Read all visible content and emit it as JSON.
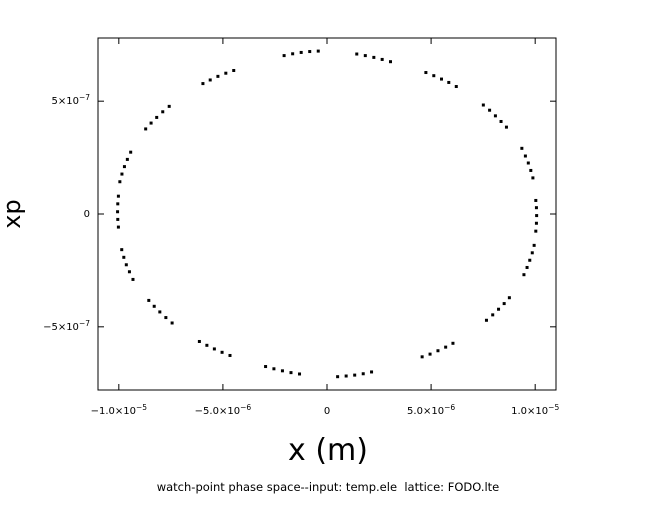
{
  "chart_data": {
    "type": "scatter",
    "title": "",
    "xlabel": "x (m)",
    "ylabel": "xp",
    "caption": "watch-point phase space--input: temp.ele  lattice: FODO.lte",
    "xlim": [
      -1.1e-05,
      1.1e-05
    ],
    "ylim": [
      -7.8e-07,
      7.8e-07
    ],
    "grid": false,
    "legend": "none",
    "marker_color": "#000000",
    "x_ticks": [
      {
        "value": -1e-05,
        "label_mantissa": "−1.0×10",
        "label_exp": "−5"
      },
      {
        "value": -5e-06,
        "label_mantissa": "−5.0×10",
        "label_exp": "−6"
      },
      {
        "value": 0,
        "label_mantissa": "0",
        "label_exp": ""
      },
      {
        "value": 5e-06,
        "label_mantissa": "5.0×10",
        "label_exp": "−6"
      },
      {
        "value": 1e-05,
        "label_mantissa": "1.0×10",
        "label_exp": "−5"
      }
    ],
    "y_ticks": [
      {
        "value": 5e-07,
        "label_mantissa": "5×10",
        "label_exp": "−7"
      },
      {
        "value": 0,
        "label_mantissa": "0",
        "label_exp": ""
      },
      {
        "value": -5e-07,
        "label_mantissa": "−5×10",
        "label_exp": "−7"
      }
    ],
    "series": [
      {
        "points": [
          [
            1.43e-06,
            7.09e-07
          ],
          [
            1.84e-06,
            7.02e-07
          ],
          [
            2.25e-06,
            6.94e-07
          ],
          [
            2.65e-06,
            6.85e-07
          ],
          [
            3.05e-06,
            6.75e-07
          ],
          [
            4.75e-06,
            6.27e-07
          ],
          [
            5.13e-06,
            6.13e-07
          ],
          [
            5.5e-06,
            5.98e-07
          ],
          [
            5.85e-06,
            5.83e-07
          ],
          [
            6.21e-06,
            5.65e-07
          ],
          [
            7.51e-06,
            4.83e-07
          ],
          [
            7.81e-06,
            4.6e-07
          ],
          [
            8.09e-06,
            4.35e-07
          ],
          [
            8.36e-06,
            4.1e-07
          ],
          [
            8.62e-06,
            3.85e-07
          ],
          [
            9.36e-06,
            2.91e-07
          ],
          [
            9.53e-06,
            2.57e-07
          ],
          [
            9.67e-06,
            2.26e-07
          ],
          [
            9.79e-06,
            1.93e-07
          ],
          [
            9.89e-06,
            1.6e-07
          ],
          [
            1.003e-05,
            6e-08
          ],
          [
            1.006e-05,
            2.8e-08
          ],
          [
            1.007e-05,
            -7e-09
          ],
          [
            1.006e-05,
            -4.1e-08
          ],
          [
            1.003e-05,
            -7.6e-08
          ],
          [
            9.95e-06,
            -1.39e-07
          ],
          [
            9.86e-06,
            -1.72e-07
          ],
          [
            9.74e-06,
            -2.05e-07
          ],
          [
            9.61e-06,
            -2.37e-07
          ],
          [
            9.46e-06,
            -2.69e-07
          ],
          [
            8.76e-06,
            -3.71e-07
          ],
          [
            8.51e-06,
            -3.97e-07
          ],
          [
            8.24e-06,
            -4.22e-07
          ],
          [
            7.96e-06,
            -4.47e-07
          ],
          [
            7.66e-06,
            -4.71e-07
          ],
          [
            6.05e-06,
            -5.73e-07
          ],
          [
            5.7e-06,
            -5.9e-07
          ],
          [
            5.33e-06,
            -6.06e-07
          ],
          [
            4.95e-06,
            -6.21e-07
          ],
          [
            4.57e-06,
            -6.33e-07
          ],
          [
            2.14e-06,
            -7e-07
          ],
          [
            1.74e-06,
            -7.08e-07
          ],
          [
            1.33e-06,
            -7.14e-07
          ],
          [
            9.2e-07,
            -7.18e-07
          ],
          [
            5.1e-07,
            -7.21e-07
          ],
          [
            -1.32e-06,
            -7.09e-07
          ],
          [
            -1.73e-06,
            -7.03e-07
          ],
          [
            -2.14e-06,
            -6.95e-07
          ],
          [
            -2.55e-06,
            -6.86e-07
          ],
          [
            -2.95e-06,
            -6.76e-07
          ],
          [
            -4.66e-06,
            -6.27e-07
          ],
          [
            -5.04e-06,
            -6.13e-07
          ],
          [
            -5.41e-06,
            -5.98e-07
          ],
          [
            -5.77e-06,
            -5.82e-07
          ],
          [
            -6.13e-06,
            -5.65e-07
          ],
          [
            -7.44e-06,
            -4.83e-07
          ],
          [
            -7.74e-06,
            -4.59e-07
          ],
          [
            -8.03e-06,
            -4.34e-07
          ],
          [
            -8.3e-06,
            -4.09e-07
          ],
          [
            -8.56e-06,
            -3.83e-07
          ],
          [
            -9.32e-06,
            -2.9e-07
          ],
          [
            -9.49e-06,
            -2.56e-07
          ],
          [
            -9.64e-06,
            -2.25e-07
          ],
          [
            -9.76e-06,
            -1.92e-07
          ],
          [
            -9.86e-06,
            -1.58e-07
          ],
          [
            -1.002e-05,
            -5.8e-08
          ],
          [
            -1.005e-05,
            -2.4e-08
          ],
          [
            -1.006e-05,
            1e-08
          ],
          [
            -1.005e-05,
            4.5e-08
          ],
          [
            -1.002e-05,
            7.9e-08
          ],
          [
            -9.95e-06,
            1.43e-07
          ],
          [
            -9.85e-06,
            1.77e-07
          ],
          [
            -9.73e-06,
            2.1e-07
          ],
          [
            -9.59e-06,
            2.42e-07
          ],
          [
            -9.43e-06,
            2.74e-07
          ],
          [
            -8.71e-06,
            3.77e-07
          ],
          [
            -8.45e-06,
            4.03e-07
          ],
          [
            -8.18e-06,
            4.28e-07
          ],
          [
            -7.89e-06,
            4.53e-07
          ],
          [
            -7.58e-06,
            4.77e-07
          ],
          [
            -5.96e-06,
            5.78e-07
          ],
          [
            -5.61e-06,
            5.94e-07
          ],
          [
            -5.24e-06,
            6.1e-07
          ],
          [
            -4.86e-06,
            6.24e-07
          ],
          [
            -4.48e-06,
            6.36e-07
          ],
          [
            -2.06e-06,
            7.02e-07
          ],
          [
            -1.65e-06,
            7.1e-07
          ],
          [
            -1.24e-06,
            7.16e-07
          ],
          [
            -8.3e-07,
            7.2e-07
          ],
          [
            -4.2e-07,
            7.22e-07
          ]
        ]
      }
    ]
  }
}
